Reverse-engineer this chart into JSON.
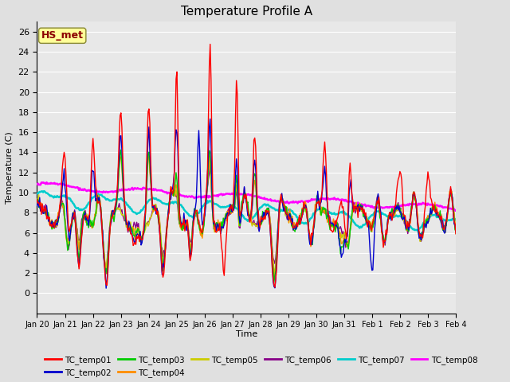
{
  "title": "Temperature Profile A",
  "xlabel": "Time",
  "ylabel": "Temperature (C)",
  "ylim": [
    -2,
    27
  ],
  "yticks": [
    0,
    2,
    4,
    6,
    8,
    10,
    12,
    14,
    16,
    18,
    20,
    22,
    24,
    26
  ],
  "annotation": "HS_met",
  "annotation_color": "#8B0000",
  "annotation_bg": "#FFFF99",
  "series_names": [
    "TC_temp01",
    "TC_temp02",
    "TC_temp03",
    "TC_temp04",
    "TC_temp05",
    "TC_temp06",
    "TC_temp07",
    "TC_temp08"
  ],
  "series_colors": [
    "#FF0000",
    "#0000CC",
    "#00CC00",
    "#FF8C00",
    "#CCCC00",
    "#880088",
    "#00CCCC",
    "#FF00FF"
  ],
  "background_color": "#E0E0E0",
  "plot_bg": "#E8E8E8",
  "grid_color": "#FFFFFF",
  "date_labels": [
    "Jan 20",
    "Jan 21",
    "Jan 22",
    "Jan 23",
    "Jan 24",
    "Jan 25",
    "Jan 26",
    "Jan 27",
    "Jan 28",
    "Jan 29",
    "Jan 30",
    "Jan 31",
    "Feb 1",
    "Feb 2",
    "Feb 3",
    "Feb 4"
  ],
  "n_points": 480,
  "figsize": [
    6.4,
    4.8
  ],
  "dpi": 100
}
